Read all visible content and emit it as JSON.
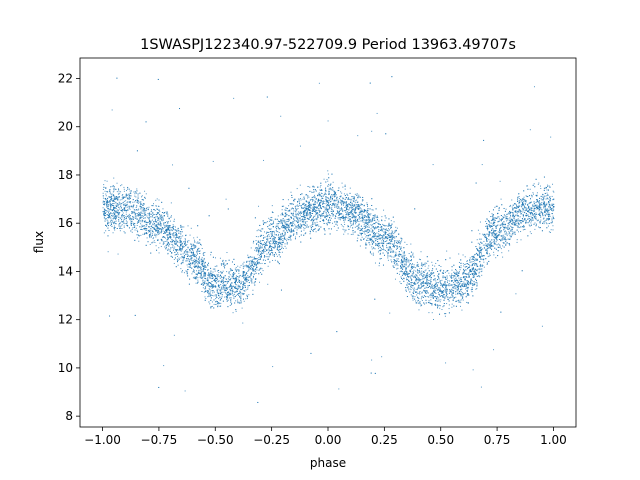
{
  "chart_data": {
    "type": "scatter",
    "title": "1SWASPJ122340.97-522709.9 Period 13963.49707s",
    "xlabel": "phase",
    "ylabel": "flux",
    "xlim": [
      -1.1,
      1.1
    ],
    "ylim": [
      7.55,
      22.85
    ],
    "x_ticks": [
      -1.0,
      -0.75,
      -0.5,
      -0.25,
      0.0,
      0.25,
      0.5,
      0.75,
      1.0
    ],
    "x_tick_labels": [
      "−1.00",
      "−0.75",
      "−0.50",
      "−0.25",
      "0.00",
      "0.25",
      "0.50",
      "0.75",
      "1.00"
    ],
    "y_ticks": [
      8,
      10,
      12,
      14,
      16,
      18,
      20,
      22
    ],
    "y_tick_labels": [
      "8",
      "10",
      "12",
      "14",
      "16",
      "18",
      "20",
      "22"
    ],
    "grid": false,
    "legend": "none",
    "marker_color": "#1f77b4",
    "series": [
      {
        "x_range": [
          -1.0,
          1.0
        ],
        "trend": {
          "phase": [
            -1.0,
            -0.9,
            -0.75,
            -0.6,
            -0.5,
            -0.4,
            -0.25,
            -0.1,
            0.0,
            0.1,
            0.25,
            0.4,
            0.5,
            0.6,
            0.75,
            0.9,
            1.0
          ],
          "flux": [
            16.7,
            16.6,
            15.9,
            14.6,
            13.4,
            13.5,
            15.4,
            16.5,
            16.8,
            16.5,
            15.4,
            13.6,
            13.3,
            13.6,
            15.8,
            16.6,
            16.7
          ]
        },
        "scatter_width": 1.6,
        "outlier_range": [
          8.2,
          22.2
        ]
      }
    ]
  }
}
